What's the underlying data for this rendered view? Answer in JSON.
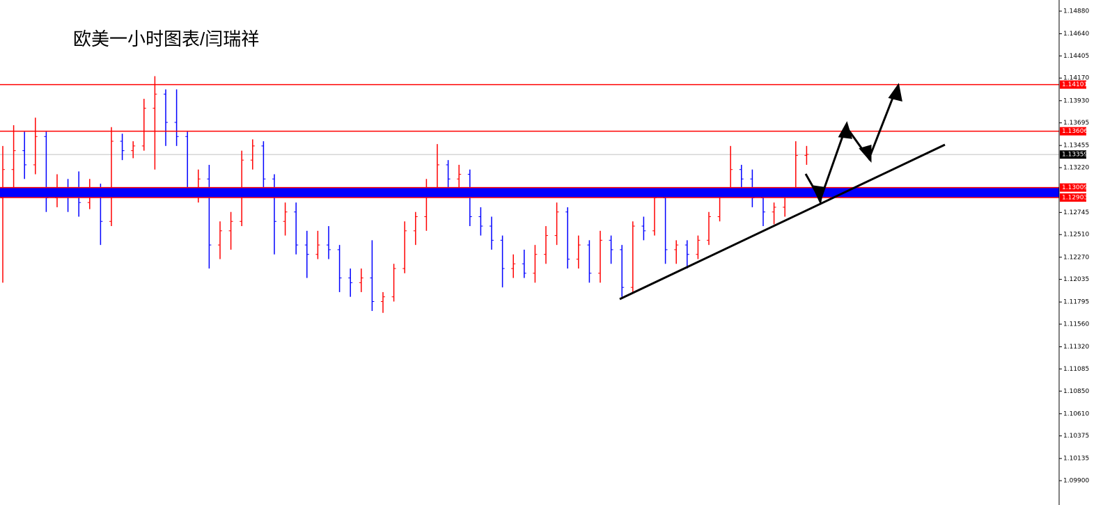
{
  "chart_data": {
    "type": "ohlc",
    "title": "欧美一小时图表/闫瑞祥",
    "open": [
      1.129,
      1.132,
      1.134,
      1.1325,
      1.1355,
      1.129,
      1.13,
      1.1295,
      1.1285,
      1.13,
      1.1265,
      1.135,
      1.134,
      1.1345,
      1.1385,
      1.14,
      1.137,
      1.1355,
      1.13,
      1.131,
      1.124,
      1.1255,
      1.1265,
      1.133,
      1.1345,
      1.131,
      1.1265,
      1.1275,
      1.124,
      1.123,
      1.124,
      1.1235,
      1.1205,
      1.12,
      1.1205,
      1.118,
      1.1185,
      1.1215,
      1.1255,
      1.127,
      1.13,
      1.1325,
      1.131,
      1.1315,
      1.127,
      1.126,
      1.1245,
      1.1215,
      1.122,
      1.121,
      1.123,
      1.125,
      1.1275,
      1.1225,
      1.124,
      1.121,
      1.1245,
      1.1235,
      1.1195,
      1.126,
      1.1255,
      1.129,
      1.1235,
      1.124,
      1.123,
      1.1245,
      1.127,
      1.1295,
      1.132,
      1.131,
      1.129,
      1.1275,
      1.128,
      1.1295,
      1.1335
    ],
    "high": [
      1.1345,
      1.1367,
      1.136,
      1.1375,
      1.136,
      1.1315,
      1.131,
      1.1318,
      1.131,
      1.1305,
      1.1365,
      1.1358,
      1.135,
      1.1395,
      1.1419,
      1.1405,
      1.1405,
      1.136,
      1.132,
      1.1325,
      1.1265,
      1.1275,
      1.134,
      1.1352,
      1.135,
      1.1315,
      1.1285,
      1.1285,
      1.1255,
      1.1255,
      1.126,
      1.124,
      1.1215,
      1.1215,
      1.1245,
      1.119,
      1.122,
      1.1265,
      1.1275,
      1.131,
      1.1347,
      1.133,
      1.1325,
      1.132,
      1.128,
      1.127,
      1.125,
      1.123,
      1.1235,
      1.124,
      1.126,
      1.1285,
      1.128,
      1.125,
      1.1245,
      1.1255,
      1.125,
      1.124,
      1.1265,
      1.127,
      1.1301,
      1.1295,
      1.1245,
      1.1245,
      1.125,
      1.1275,
      1.13,
      1.1345,
      1.1325,
      1.132,
      1.1295,
      1.1285,
      1.13,
      1.135,
      1.1345
    ],
    "low": [
      1.12,
      1.13,
      1.131,
      1.1315,
      1.1275,
      1.128,
      1.1275,
      1.127,
      1.1278,
      1.124,
      1.126,
      1.133,
      1.1332,
      1.134,
      1.132,
      1.1345,
      1.1345,
      1.129,
      1.1285,
      1.1215,
      1.1225,
      1.1235,
      1.126,
      1.132,
      1.13,
      1.123,
      1.125,
      1.123,
      1.1205,
      1.1225,
      1.1225,
      1.119,
      1.1185,
      1.119,
      1.117,
      1.1168,
      1.118,
      1.121,
      1.124,
      1.1255,
      1.1295,
      1.13,
      1.13,
      1.126,
      1.125,
      1.1235,
      1.1195,
      1.1205,
      1.1205,
      1.12,
      1.122,
      1.124,
      1.1215,
      1.1215,
      1.12,
      1.12,
      1.122,
      1.1185,
      1.119,
      1.1245,
      1.125,
      1.122,
      1.122,
      1.1215,
      1.1225,
      1.124,
      1.1265,
      1.129,
      1.13,
      1.128,
      1.126,
      1.1262,
      1.127,
      1.129,
      1.1325
    ],
    "close": [
      1.132,
      1.134,
      1.1325,
      1.1355,
      1.129,
      1.13,
      1.1295,
      1.1285,
      1.13,
      1.1265,
      1.135,
      1.134,
      1.1345,
      1.1385,
      1.14,
      1.137,
      1.1355,
      1.13,
      1.131,
      1.124,
      1.1255,
      1.1265,
      1.133,
      1.1345,
      1.131,
      1.1265,
      1.1275,
      1.124,
      1.123,
      1.124,
      1.1235,
      1.1205,
      1.12,
      1.1205,
      1.118,
      1.1185,
      1.1215,
      1.1255,
      1.127,
      1.13,
      1.1325,
      1.131,
      1.1315,
      1.127,
      1.126,
      1.1245,
      1.1215,
      1.122,
      1.121,
      1.123,
      1.125,
      1.1275,
      1.1225,
      1.124,
      1.121,
      1.1245,
      1.1235,
      1.1195,
      1.126,
      1.1255,
      1.129,
      1.1235,
      1.124,
      1.123,
      1.1245,
      1.127,
      1.1295,
      1.132,
      1.131,
      1.129,
      1.1275,
      1.128,
      1.1295,
      1.1335,
      1.1336
    ],
    "up_color": "#ff0000",
    "down_color": "#0000ff",
    "ylim": [
      1.09642,
      1.14998
    ],
    "yticks": [
      {
        "value": 1.1488,
        "label": "1.14880"
      },
      {
        "value": 1.1464,
        "label": "1.14640"
      },
      1.14405,
      {
        "value": 1.1417,
        "label": "1.14170"
      },
      {
        "value": 1.1393,
        "label": "1.13930"
      },
      1.13695,
      1.13455,
      {
        "value": 1.1322,
        "label": "1.13220"
      },
      1.12745,
      {
        "value": 1.1251,
        "label": "1.12510"
      },
      {
        "value": 1.1227,
        "label": "1.12270"
      },
      1.12035,
      1.11795,
      {
        "value": 1.1156,
        "label": "1.11560"
      },
      {
        "value": 1.1132,
        "label": "1.11320"
      },
      1.11085,
      {
        "value": 1.1085,
        "label": "1.10850"
      },
      {
        "value": 1.1061,
        "label": "1.10610"
      },
      1.10375,
      1.10135,
      {
        "value": 1.099,
        "label": "1.09900"
      }
    ],
    "levels": [
      1.14101,
      1.13606,
      1.13009,
      1.12903
    ],
    "level_color": "#ff0000",
    "zone_color": "#0000ff",
    "last_price": 1.13359
  }
}
